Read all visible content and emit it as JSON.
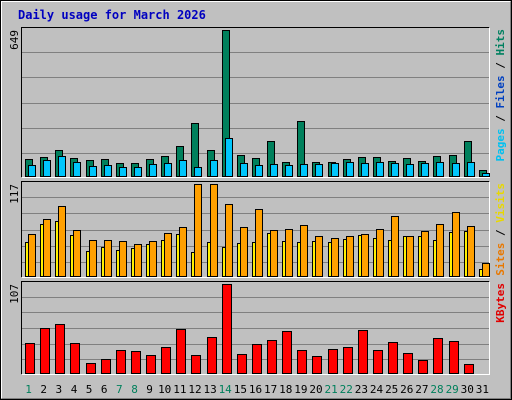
{
  "chart_data": {
    "type": "bar",
    "title": "Daily usage for March 2026",
    "categories": [
      "1",
      "2",
      "3",
      "4",
      "5",
      "6",
      "7",
      "8",
      "9",
      "10",
      "11",
      "12",
      "13",
      "14",
      "15",
      "16",
      "17",
      "18",
      "19",
      "20",
      "21",
      "22",
      "23",
      "24",
      "25",
      "26",
      "27",
      "28",
      "29",
      "30",
      "31"
    ],
    "weekend_days": [
      "1",
      "7",
      "8",
      "14",
      "21",
      "22",
      "28",
      "29"
    ],
    "grid": true,
    "panels": [
      {
        "id": "hits",
        "max_label": "649",
        "ylim": [
          0,
          649
        ],
        "legend": [
          {
            "text": "Pages",
            "color": "#00C0F0"
          },
          {
            "text": " / ",
            "color": "#000000"
          },
          {
            "text": "Files",
            "color": "#0040C0"
          },
          {
            "text": " / ",
            "color": "#000000"
          },
          {
            "text": "Hits",
            "color": "#008060"
          }
        ],
        "series": [
          {
            "name": "Hits",
            "color": "#00805C",
            "values": [
              78,
              88,
              118,
              85,
              75,
              78,
              62,
              62,
              78,
              93,
              138,
              237,
              120,
              649,
              95,
              82,
              158,
              68,
              248,
              68,
              68,
              78,
              87,
              87,
              72,
              82,
              72,
              93,
              97,
              158,
              30
            ]
          },
          {
            "name": "Pages",
            "color": "#00C6FC",
            "values": [
              53,
              73,
              93,
              68,
              50,
              53,
              42,
              45,
              57,
              62,
              74,
              45,
              74,
              172,
              62,
              53,
              58,
              52,
              57,
              58,
              62,
              67,
              62,
              68,
              62,
              58,
              62,
              65,
              62,
              68,
              17
            ]
          }
        ]
      },
      {
        "id": "visits",
        "max_label": "117",
        "ylim": [
          0,
          117
        ],
        "legend": [
          {
            "text": "Sites",
            "color": "#E87800"
          },
          {
            "text": " / ",
            "color": "#000000"
          },
          {
            "text": "Visits",
            "color": "#E8D800"
          }
        ],
        "series": [
          {
            "name": "Visits",
            "color": "#FFF000",
            "values": [
              44,
              67,
              71,
              53,
              33,
              38,
              34,
              36,
              42,
              47,
              54,
              31,
              44,
              38,
              43,
              44,
              55,
              45,
              44,
              45,
              44,
              48,
              53,
              49,
              47,
              52,
              52,
              47,
              57,
              58,
              10
            ]
          },
          {
            "name": "Sites",
            "color": "#FFA000",
            "values": [
              54,
              73,
              89,
              59,
              47,
              47,
              45,
              41,
              45,
              55,
              63,
              117,
              117,
              92,
              63,
              86,
              59,
              60,
              65,
              52,
              49,
              51,
              54,
              60,
              77,
              51,
              58,
              67,
              82,
              64,
              17
            ]
          }
        ]
      },
      {
        "id": "kbytes",
        "max_label": "107",
        "ylim": [
          0,
          107
        ],
        "legend": [
          {
            "text": "KBytes",
            "color": "#E00000"
          }
        ],
        "series": [
          {
            "name": "KBytes",
            "color": "#FF0000",
            "values": [
              37,
              55,
              60,
              37,
              13,
              18,
              29,
              27,
              22,
              32,
              54,
              22,
              44,
              107,
              24,
              36,
              40,
              51,
              29,
              21,
              30,
              32,
              52,
              29,
              38,
              25,
              17,
              43,
              39,
              12,
              0
            ]
          }
        ]
      }
    ]
  }
}
